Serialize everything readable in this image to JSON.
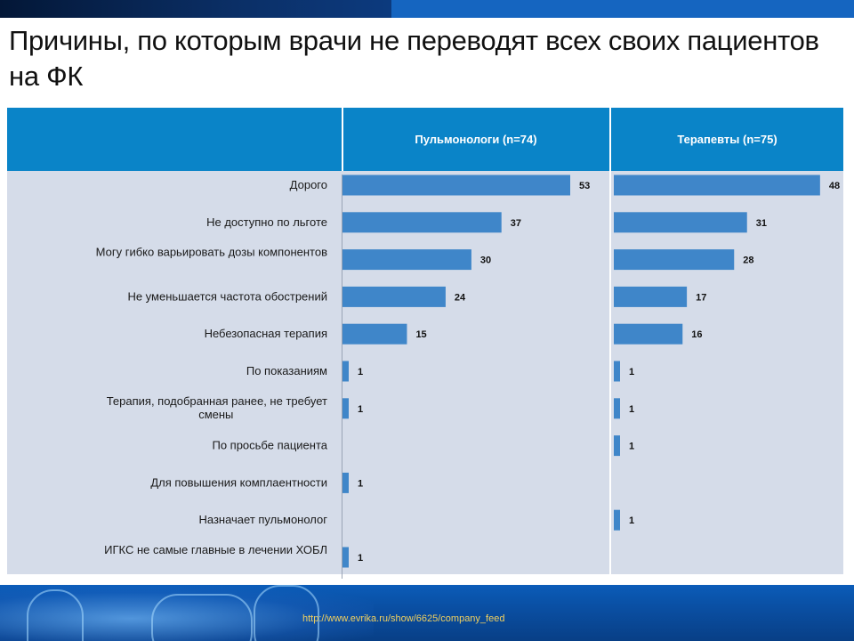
{
  "title": "Причины, по которым врачи не переводят всех своих пациентов на ФК",
  "footer_url": "http://www.evrika.ru/show/6625/company_feed",
  "colors": {
    "bar": "#3f86c9",
    "header": "#0a84c8",
    "panel": "#d5dce9"
  },
  "chart_data": {
    "type": "bar",
    "orientation": "horizontal",
    "categories": [
      "Дорого",
      "Не доступно по льготе",
      "Могу гибко варьировать дозы компонентов",
      "Не уменьшается частота обострений",
      "Небезопасная терапия",
      "По показаниям",
      "Терапия, подобранная ранее, не требует смены",
      "По просьбе пациента",
      "Для повышения комплаентности",
      "Назначает пульмонолог",
      "ИГКС не самые главные в лечении ХОБЛ"
    ],
    "series": [
      {
        "name": "Пульмонологи (n=74)",
        "values": [
          53,
          37,
          30,
          24,
          15,
          1,
          1,
          null,
          1,
          null,
          1
        ]
      },
      {
        "name": "Терапевты (n=75)",
        "values": [
          48,
          31,
          28,
          17,
          16,
          1,
          1,
          1,
          null,
          1,
          null
        ]
      }
    ]
  }
}
